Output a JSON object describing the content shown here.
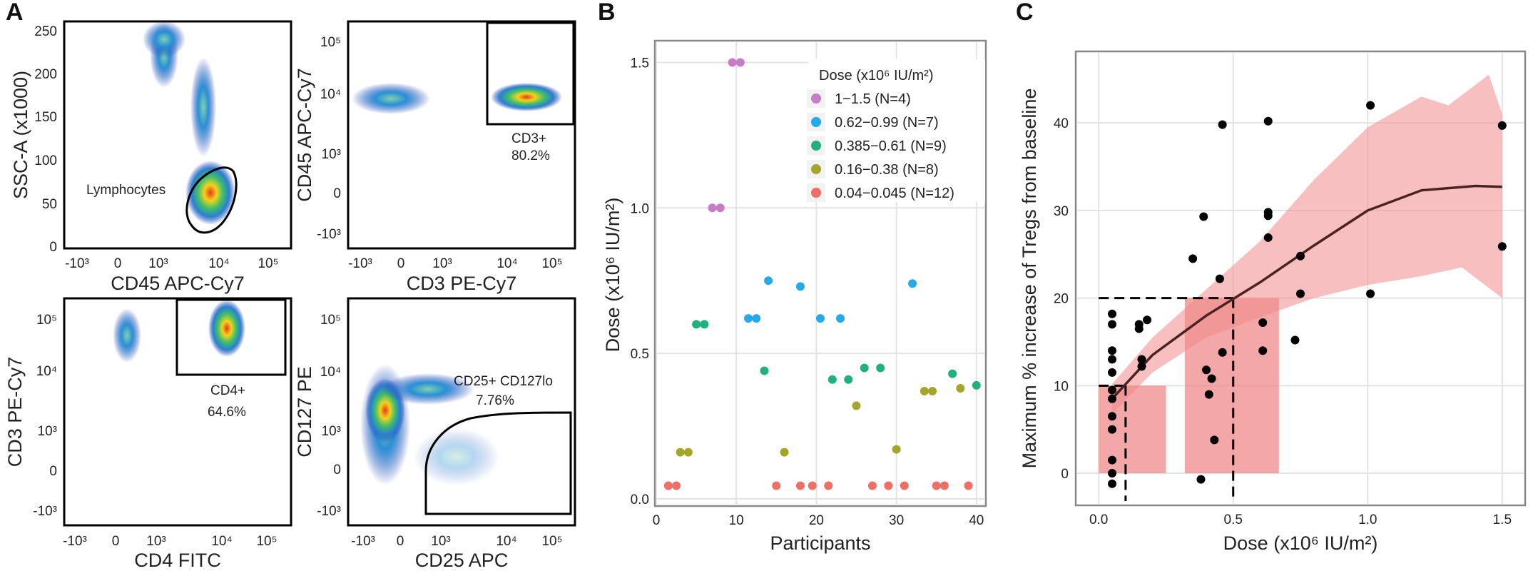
{
  "panel_labels": {
    "a": "A",
    "b": "B",
    "c": "C"
  },
  "flow": {
    "p1": {
      "x_label": "CD45 APC-Cy7",
      "y_label": "SSC-A (x1000)",
      "gate": "Lymphocytes",
      "x_ticks": [
        "-10³",
        "0",
        "10³",
        "10⁴",
        "10⁵"
      ],
      "y_ticks": [
        "250",
        "200",
        "150",
        "100",
        "50",
        "0"
      ]
    },
    "p2": {
      "x_label": "CD3 PE-Cy7",
      "y_label": "CD45 APC-Cy7",
      "gate": "CD3+",
      "gate_pct": "80.2%",
      "x_ticks": [
        "-10³",
        "0",
        "10³",
        "10⁴",
        "10⁵"
      ],
      "y_ticks": [
        "10⁵",
        "10⁴",
        "10³",
        "0",
        "-10³"
      ]
    },
    "p3": {
      "x_label": "CD4 FITC",
      "y_label": "CD3 PE-Cy7",
      "gate": "CD4+",
      "gate_pct": "64.6%",
      "x_ticks": [
        "-10³",
        "0",
        "10³",
        "10⁴",
        "10⁵"
      ],
      "y_ticks": [
        "10⁵",
        "10⁴",
        "10³",
        "0",
        "-10³"
      ]
    },
    "p4": {
      "x_label": "CD25 APC",
      "y_label": "CD127 PE",
      "gate": "CD25+ CD127lo",
      "gate_pct": "7.76%",
      "x_ticks": [
        "-10³",
        "0",
        "10³",
        "10⁴",
        "10⁵"
      ],
      "y_ticks": [
        "10⁵",
        "10⁴",
        "10³",
        "0",
        "-10³"
      ]
    }
  },
  "chart_data": [
    {
      "type": "scatter",
      "xlabel": "Participants",
      "ylabel": "Dose (x10⁶ IU/m²)",
      "xlim": [
        0,
        41
      ],
      "ylim": [
        -0.02,
        1.57
      ],
      "x_ticks": [
        0,
        10,
        20,
        30,
        40
      ],
      "y_ticks": [
        0.0,
        0.5,
        1.0,
        1.5
      ],
      "y_tick_labels": [
        "0.0",
        "0.5",
        "1.0",
        "1.5"
      ],
      "grid": true,
      "legend": {
        "title": "Dose (x10⁶ IU/m²)",
        "placement": "top-right"
      },
      "series": [
        {
          "name": "1−1.5 (N=4)",
          "color": "#c77cc7",
          "points": [
            [
              7,
              1.0
            ],
            [
              8,
              1.0
            ],
            [
              9.5,
              1.5
            ],
            [
              10.5,
              1.5
            ]
          ]
        },
        {
          "name": "0.62−0.99 (N=7)",
          "color": "#26a9e8",
          "points": [
            [
              11.5,
              0.62
            ],
            [
              12.5,
              0.62
            ],
            [
              14,
              0.75
            ],
            [
              18,
              0.73
            ],
            [
              20.5,
              0.62
            ],
            [
              23,
              0.62
            ],
            [
              32,
              0.74
            ]
          ]
        },
        {
          "name": "0.385−0.61 (N=9)",
          "color": "#22b07d",
          "points": [
            [
              5,
              0.6
            ],
            [
              6,
              0.6
            ],
            [
              13.5,
              0.44
            ],
            [
              22,
              0.41
            ],
            [
              24,
              0.41
            ],
            [
              26,
              0.45
            ],
            [
              28,
              0.45
            ],
            [
              37,
              0.43
            ],
            [
              40,
              0.39
            ]
          ]
        },
        {
          "name": "0.16−0.38 (N=8)",
          "color": "#a3a62a",
          "points": [
            [
              3,
              0.16
            ],
            [
              4,
              0.16
            ],
            [
              16,
              0.16
            ],
            [
              25,
              0.32
            ],
            [
              30,
              0.17
            ],
            [
              33.5,
              0.37
            ],
            [
              34.5,
              0.37
            ],
            [
              38,
              0.38
            ]
          ]
        },
        {
          "name": "0.04−0.045 (N=12)",
          "color": "#ef6f67",
          "points": [
            [
              1.5,
              0.045
            ],
            [
              2.5,
              0.045
            ],
            [
              15,
              0.045
            ],
            [
              18,
              0.045
            ],
            [
              19.5,
              0.045
            ],
            [
              21.5,
              0.045
            ],
            [
              27,
              0.045
            ],
            [
              29,
              0.045
            ],
            [
              31,
              0.045
            ],
            [
              35,
              0.045
            ],
            [
              36,
              0.045
            ],
            [
              39,
              0.045
            ]
          ]
        }
      ]
    },
    {
      "type": "scatter",
      "xlabel": "Dose (x10⁶ IU/m²)",
      "ylabel": "Maximum  %  increase of Tregs from baseline",
      "xlim": [
        -0.08,
        1.58
      ],
      "ylim": [
        -3.5,
        48
      ],
      "x_ticks": [
        0.0,
        0.5,
        1.0,
        1.5
      ],
      "x_tick_labels": [
        "0.0",
        "0.5",
        "1.0",
        "1.5"
      ],
      "y_ticks": [
        0,
        10,
        20,
        30,
        40
      ],
      "grid": true,
      "points": [
        [
          0.05,
          18.2
        ],
        [
          0.05,
          17
        ],
        [
          0.05,
          14
        ],
        [
          0.05,
          13
        ],
        [
          0.05,
          11.5
        ],
        [
          0.05,
          9.5
        ],
        [
          0.05,
          8.5
        ],
        [
          0.05,
          6.5
        ],
        [
          0.05,
          5
        ],
        [
          0.05,
          1.5
        ],
        [
          0.05,
          0
        ],
        [
          0.05,
          -1.2
        ],
        [
          0.15,
          17
        ],
        [
          0.15,
          16.5
        ],
        [
          0.16,
          13
        ],
        [
          0.16,
          12.2
        ],
        [
          0.18,
          17.5
        ],
        [
          0.35,
          24.5
        ],
        [
          0.39,
          29.3
        ],
        [
          0.4,
          11.8
        ],
        [
          0.41,
          9
        ],
        [
          0.38,
          -0.7
        ],
        [
          0.42,
          10.8
        ],
        [
          0.43,
          3.8
        ],
        [
          0.45,
          22.2
        ],
        [
          0.46,
          39.8
        ],
        [
          0.46,
          13.8
        ],
        [
          0.61,
          17.2
        ],
        [
          0.61,
          14
        ],
        [
          0.63,
          40.2
        ],
        [
          0.63,
          29.8
        ],
        [
          0.63,
          29.4
        ],
        [
          0.63,
          26.9
        ],
        [
          0.73,
          15.2
        ],
        [
          0.75,
          20.5
        ],
        [
          0.75,
          24.8
        ],
        [
          1.01,
          42
        ],
        [
          1.01,
          20.5
        ],
        [
          1.5,
          39.7
        ],
        [
          1.5,
          25.9
        ]
      ],
      "fit_line": [
        [
          0.05,
          8.5
        ],
        [
          0.2,
          13.5
        ],
        [
          0.4,
          18
        ],
        [
          0.6,
          21.8
        ],
        [
          0.8,
          26
        ],
        [
          1.0,
          30
        ],
        [
          1.2,
          32.3
        ],
        [
          1.4,
          32.8
        ],
        [
          1.5,
          32.7
        ]
      ],
      "ci_band": {
        "upper": [
          [
            0.05,
            10.2
          ],
          [
            0.2,
            15.5
          ],
          [
            0.4,
            21
          ],
          [
            0.6,
            26.5
          ],
          [
            0.8,
            33.5
          ],
          [
            1.0,
            39.5
          ],
          [
            1.2,
            43
          ],
          [
            1.3,
            42
          ],
          [
            1.45,
            45.5
          ],
          [
            1.5,
            41
          ]
        ],
        "lower": [
          [
            0.05,
            6.8
          ],
          [
            0.2,
            11.5
          ],
          [
            0.4,
            15.5
          ],
          [
            0.6,
            17.8
          ],
          [
            0.8,
            20
          ],
          [
            1.0,
            21.5
          ],
          [
            1.2,
            22.5
          ],
          [
            1.35,
            23.5
          ],
          [
            1.5,
            20
          ]
        ]
      },
      "highlight_rects": [
        {
          "x": [
            0.0,
            0.25
          ],
          "y": [
            0,
            10
          ]
        },
        {
          "x": [
            0.32,
            0.67
          ],
          "y": [
            0,
            20
          ]
        }
      ],
      "dashed_refs": [
        {
          "x": 0.1,
          "y": 10
        },
        {
          "x": 0.5,
          "y": 20
        }
      ]
    }
  ]
}
